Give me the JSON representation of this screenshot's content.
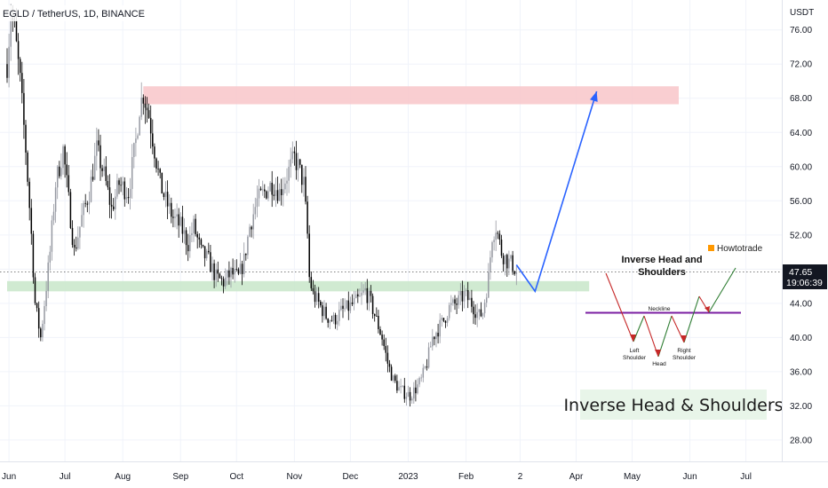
{
  "header": {
    "title": "EGLD / TetherUS, 1D, BINANCE"
  },
  "axis": {
    "currency": "USDT"
  },
  "price_badge": {
    "price": "47.65",
    "countdown": "19:06:39"
  },
  "annotations": {
    "pattern_title_line1": "Inverse Head and",
    "pattern_title_line2": "Shoulders",
    "neckline": "Neckline",
    "left_shoulder_1": "Left",
    "left_shoulder_2": "Shoulder",
    "head": "Head",
    "right_shoulder_1": "Right",
    "right_shoulder_2": "Shoulder",
    "logo": "Howtotrade",
    "logo_sub": "",
    "big_label": "Inverse Head & Shoulders"
  },
  "colors": {
    "up": "#9598a1",
    "down": "#000000",
    "support_zone": "#c8e6c9",
    "resistance_zone": "#f8c6c9",
    "projection": "#2962ff",
    "badge": "#131722",
    "neckline": "#7b1fa2"
  },
  "chart_data": {
    "type": "candlestick",
    "title": "EGLD / TetherUS, 1D, BINANCE",
    "y_axis_unit": "USDT",
    "ylim": [
      25.5,
      79.5
    ],
    "y_ticks": [
      28,
      32,
      36,
      40,
      44,
      48,
      52,
      56,
      60,
      64,
      68,
      72,
      76
    ],
    "x_ticks": [
      "Jun",
      "Jul",
      "Aug",
      "Sep",
      "Oct",
      "Nov",
      "Dec",
      "2023",
      "Feb",
      "2",
      "Apr",
      "May",
      "Jun",
      "Jul"
    ],
    "last_price": 47.65,
    "price_path": [
      [
        "2022-05-31",
        72
      ],
      [
        "2022-06-02",
        78
      ],
      [
        "2022-06-04",
        76
      ],
      [
        "2022-06-07",
        70
      ],
      [
        "2022-06-10",
        62
      ],
      [
        "2022-06-13",
        52
      ],
      [
        "2022-06-15",
        44
      ],
      [
        "2022-06-18",
        40
      ],
      [
        "2022-06-20",
        44
      ],
      [
        "2022-06-23",
        50
      ],
      [
        "2022-06-26",
        58
      ],
      [
        "2022-06-30",
        62
      ],
      [
        "2022-07-03",
        56
      ],
      [
        "2022-07-06",
        50
      ],
      [
        "2022-07-10",
        54
      ],
      [
        "2022-07-14",
        57
      ],
      [
        "2022-07-18",
        62
      ],
      [
        "2022-07-22",
        59
      ],
      [
        "2022-07-26",
        55
      ],
      [
        "2022-07-30",
        58
      ],
      [
        "2022-08-04",
        57
      ],
      [
        "2022-08-08",
        63
      ],
      [
        "2022-08-10",
        67
      ],
      [
        "2022-08-12",
        68.5
      ],
      [
        "2022-08-15",
        66
      ],
      [
        "2022-08-18",
        62
      ],
      [
        "2022-08-21",
        58
      ],
      [
        "2022-08-24",
        56
      ],
      [
        "2022-08-28",
        54
      ],
      [
        "2022-09-01",
        53
      ],
      [
        "2022-09-05",
        51
      ],
      [
        "2022-09-08",
        53
      ],
      [
        "2022-09-12",
        50
      ],
      [
        "2022-09-16",
        49
      ],
      [
        "2022-09-20",
        47
      ],
      [
        "2022-09-24",
        46.5
      ],
      [
        "2022-09-28",
        47.5
      ],
      [
        "2022-10-02",
        47
      ],
      [
        "2022-10-05",
        49
      ],
      [
        "2022-10-08",
        53
      ],
      [
        "2022-10-12",
        56
      ],
      [
        "2022-10-16",
        57
      ],
      [
        "2022-10-20",
        58
      ],
      [
        "2022-10-24",
        57
      ],
      [
        "2022-10-28",
        59
      ],
      [
        "2022-11-01",
        61
      ],
      [
        "2022-11-03",
        60
      ],
      [
        "2022-11-06",
        58
      ],
      [
        "2022-11-08",
        52
      ],
      [
        "2022-11-09",
        47
      ],
      [
        "2022-11-11",
        45
      ],
      [
        "2022-11-14",
        44
      ],
      [
        "2022-11-18",
        42.5
      ],
      [
        "2022-11-22",
        42
      ],
      [
        "2022-11-26",
        43
      ],
      [
        "2022-11-30",
        43.5
      ],
      [
        "2022-12-03",
        44
      ],
      [
        "2022-12-06",
        44.5
      ],
      [
        "2022-12-09",
        45.5
      ],
      [
        "2022-12-12",
        44
      ],
      [
        "2022-12-15",
        42
      ],
      [
        "2022-12-18",
        40
      ],
      [
        "2022-12-21",
        37
      ],
      [
        "2022-12-24",
        35
      ],
      [
        "2022-12-27",
        34
      ],
      [
        "2022-12-30",
        33.5
      ],
      [
        "2023-01-02",
        33.2
      ],
      [
        "2023-01-05",
        34
      ],
      [
        "2023-01-08",
        35
      ],
      [
        "2023-01-11",
        37
      ],
      [
        "2023-01-14",
        40
      ],
      [
        "2023-01-17",
        41
      ],
      [
        "2023-01-20",
        42
      ],
      [
        "2023-01-23",
        43.5
      ],
      [
        "2023-01-27",
        44
      ],
      [
        "2023-01-31",
        45
      ],
      [
        "2023-02-04",
        44
      ],
      [
        "2023-02-08",
        42.5
      ],
      [
        "2023-02-10",
        43
      ],
      [
        "2023-02-13",
        47
      ],
      [
        "2023-02-15",
        52
      ],
      [
        "2023-02-17",
        53
      ],
      [
        "2023-02-20",
        50
      ],
      [
        "2023-02-23",
        49
      ],
      [
        "2023-02-26",
        48.5
      ],
      [
        "2023-02-28",
        47.65
      ]
    ],
    "zones": [
      {
        "from": "2022-08-12",
        "to": "2023-05-26",
        "low": 67.3,
        "high": 69.4
      },
      {
        "from": "2022-05-31",
        "to": "2023-04-08",
        "low": 45.4,
        "high": 46.6
      }
    ],
    "projection": [
      [
        "2023-02-28",
        48.5
      ],
      [
        "2023-03-10",
        45.4
      ],
      [
        "2023-04-12",
        68.8
      ]
    ]
  }
}
